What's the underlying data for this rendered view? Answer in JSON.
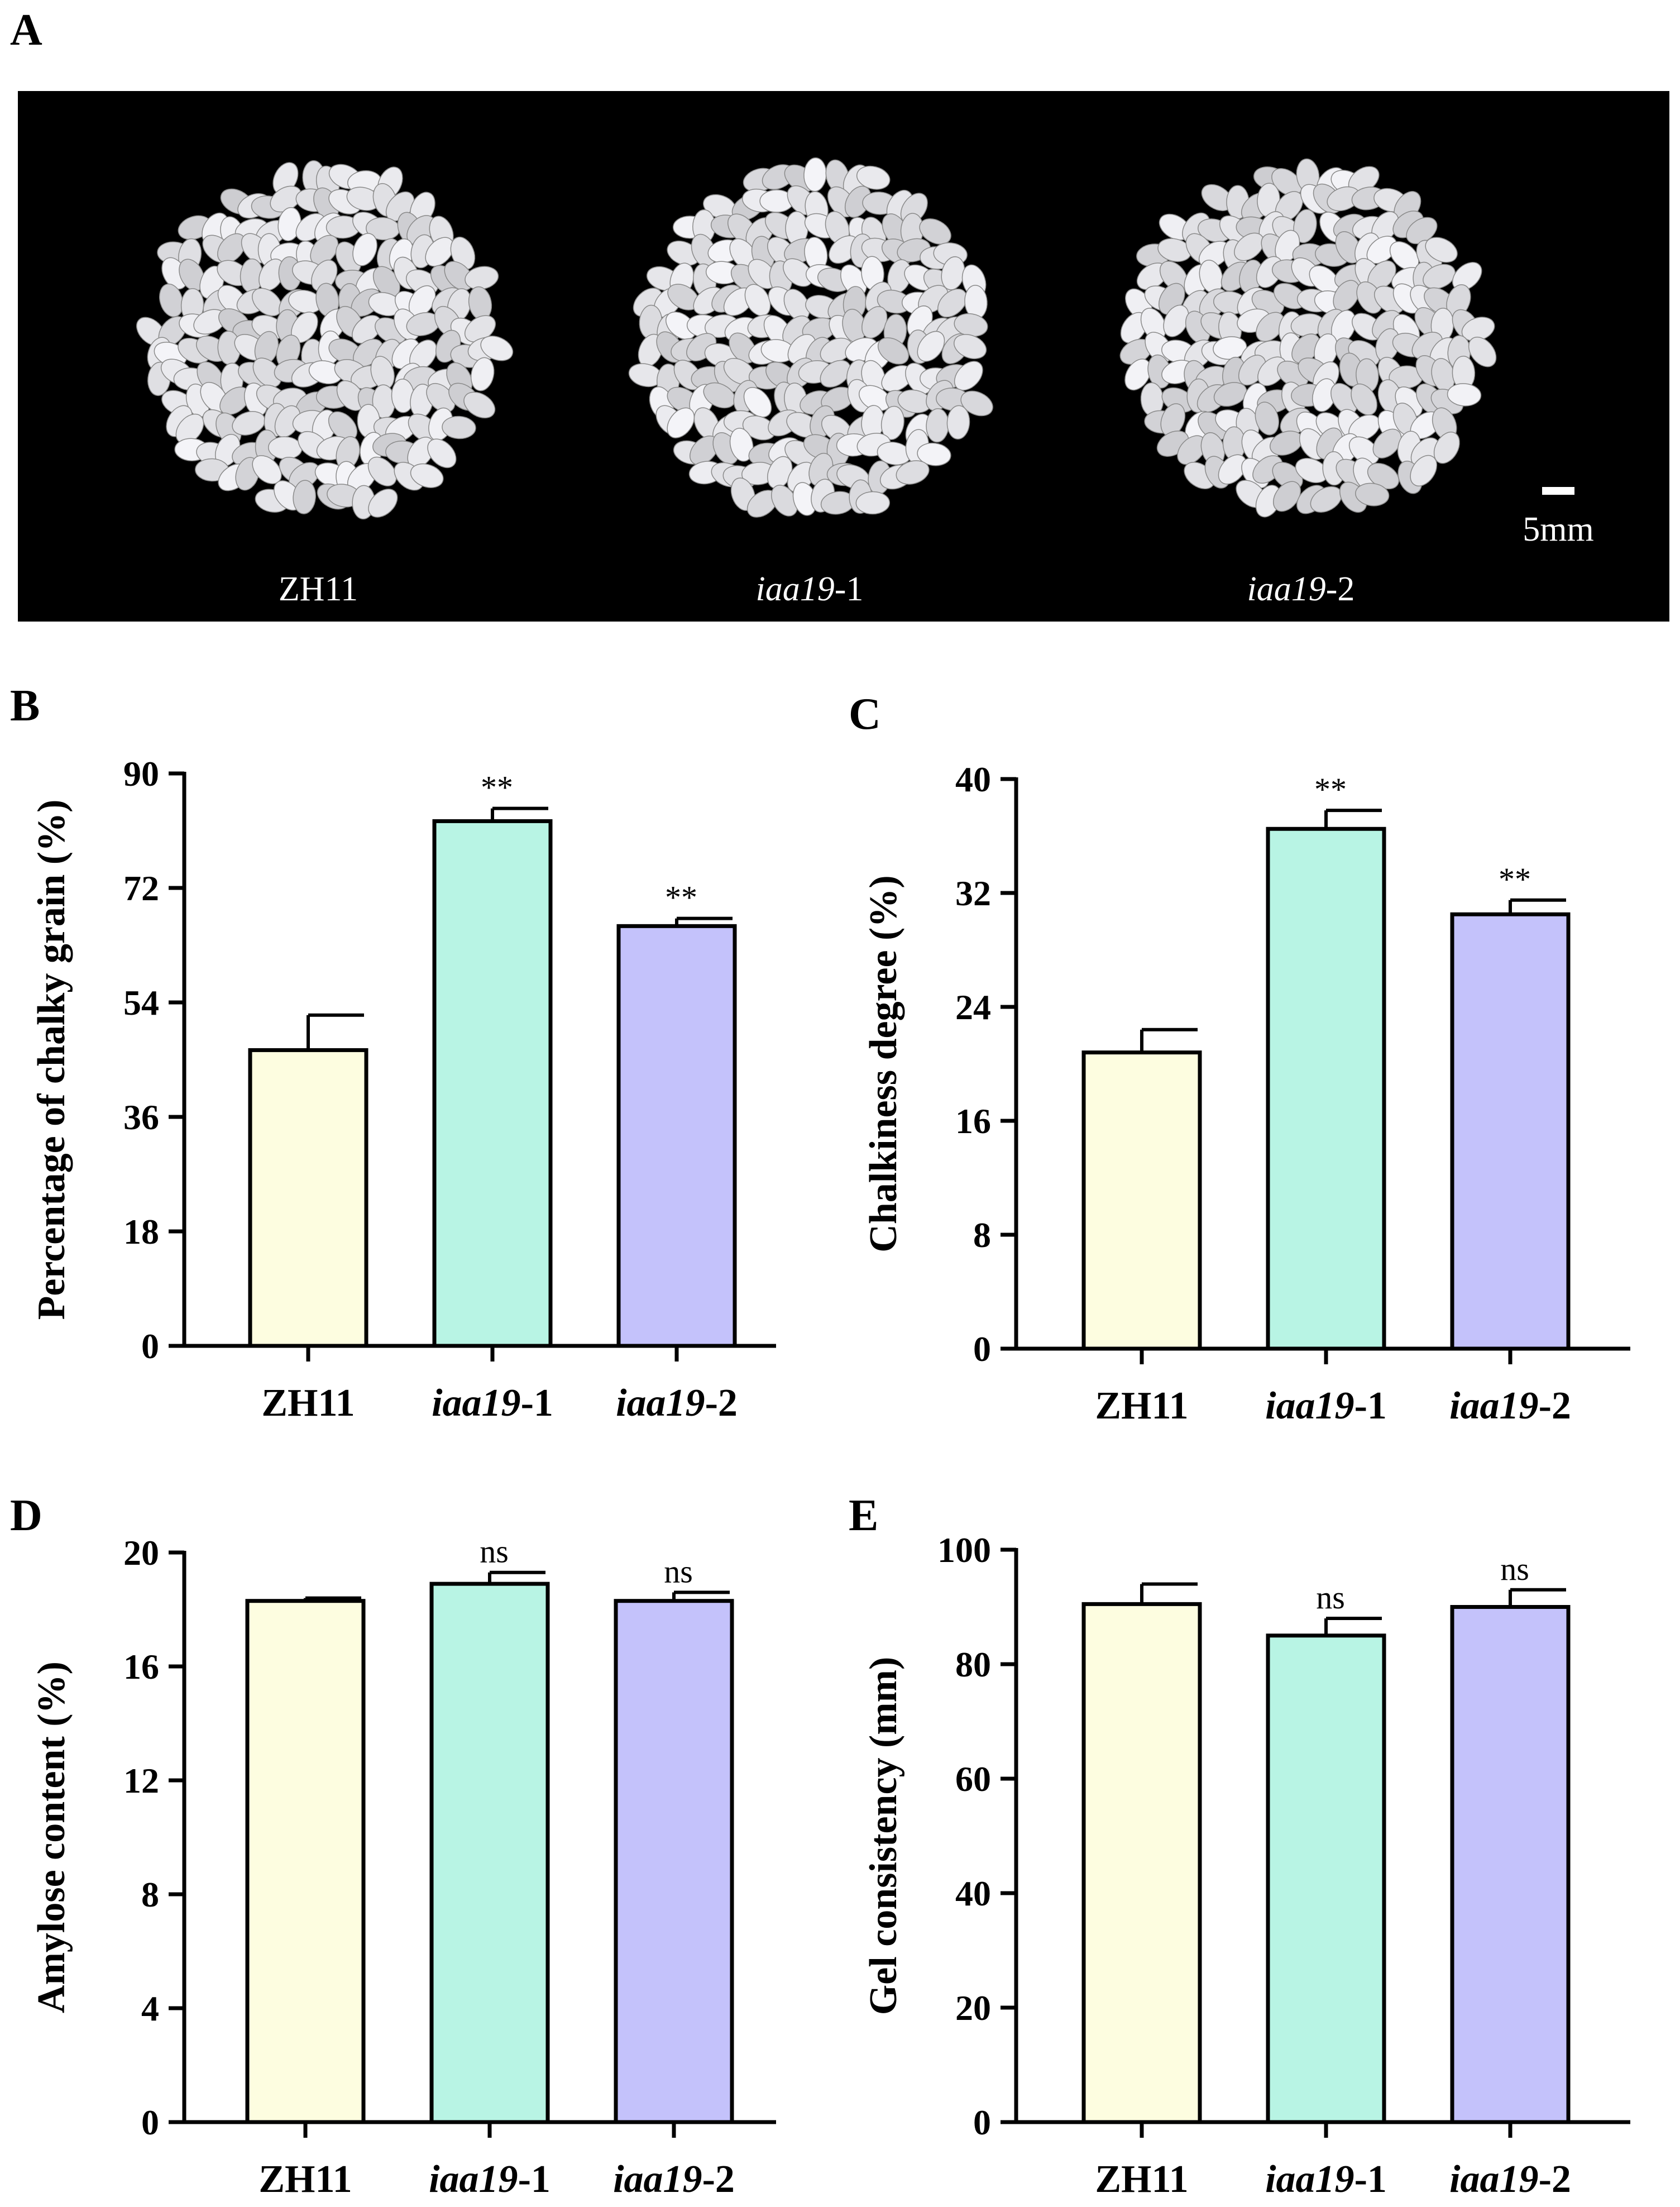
{
  "panel_a": {
    "letter": "A",
    "labels": [
      {
        "main": "ZH11",
        "suffix": ""
      },
      {
        "main": "iaa19",
        "suffix": "-1"
      },
      {
        "main": "iaa19",
        "suffix": "-2"
      }
    ],
    "scale_bar_label": "5mm"
  },
  "colors": {
    "ZH11": "#fdfde0",
    "iaa19-1": "#b8f4e4",
    "iaa19-2": "#c4c2fb",
    "background_photo": "#000000",
    "grain": "#dcdcdc"
  },
  "chart_data": [
    {
      "panel": "B",
      "type": "bar",
      "categories": [
        {
          "main": "ZH11",
          "suffix": ""
        },
        {
          "main": "iaa19",
          "suffix": "-1"
        },
        {
          "main": "iaa19",
          "suffix": "-2"
        }
      ],
      "values": [
        46.5,
        82.5,
        66
      ],
      "errors": [
        5.5,
        2,
        1.2
      ],
      "significance": [
        "",
        "**",
        "**"
      ],
      "ylabel": "Percentage of chalky grain (%)",
      "ylim": [
        0,
        90
      ],
      "yticks": [
        0,
        18,
        36,
        54,
        72,
        90
      ]
    },
    {
      "panel": "C",
      "type": "bar",
      "categories": [
        {
          "main": "ZH11",
          "suffix": ""
        },
        {
          "main": "iaa19",
          "suffix": "-1"
        },
        {
          "main": "iaa19",
          "suffix": "-2"
        }
      ],
      "values": [
        20.8,
        36.5,
        30.5
      ],
      "errors": [
        1.6,
        1.3,
        1.0
      ],
      "significance": [
        "",
        "**",
        "**"
      ],
      "ylabel": "Chalkiness degree (%)",
      "ylim": [
        0,
        40
      ],
      "yticks": [
        0,
        8,
        16,
        24,
        32,
        40
      ]
    },
    {
      "panel": "D",
      "type": "bar",
      "categories": [
        {
          "main": "ZH11",
          "suffix": ""
        },
        {
          "main": "iaa19",
          "suffix": "-1"
        },
        {
          "main": "iaa19",
          "suffix": "-2"
        }
      ],
      "values": [
        18.3,
        18.9,
        18.3
      ],
      "errors": [
        0.1,
        0.4,
        0.3
      ],
      "significance": [
        "",
        "ns",
        "ns"
      ],
      "ylabel": "Amylose content (%)",
      "ylim": [
        0,
        20
      ],
      "yticks": [
        0,
        4,
        8,
        12,
        16,
        20
      ]
    },
    {
      "panel": "E",
      "type": "bar",
      "categories": [
        {
          "main": "ZH11",
          "suffix": ""
        },
        {
          "main": "iaa19",
          "suffix": "-1"
        },
        {
          "main": "iaa19",
          "suffix": "-2"
        }
      ],
      "values": [
        90.5,
        85,
        90
      ],
      "errors": [
        3.5,
        3,
        3
      ],
      "significance": [
        "",
        "ns",
        "ns"
      ],
      "ylabel": "Gel consistency (mm)",
      "ylim": [
        0,
        100
      ],
      "yticks": [
        0,
        20,
        40,
        60,
        80,
        100
      ]
    }
  ]
}
